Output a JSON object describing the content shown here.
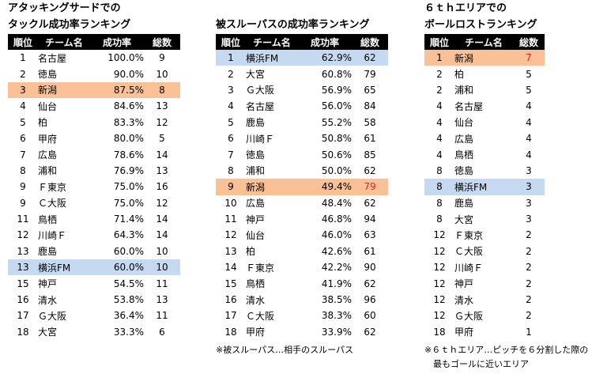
{
  "colors": {
    "orange_highlight": "#f9c195",
    "blue_highlight": "#c5d9f1",
    "header_bg": "#000000",
    "red_text": "#e8251b"
  },
  "panels": [
    {
      "title_lines": [
        "アタッキングサードでの",
        "タックル成功率ランキング"
      ],
      "headers": [
        "順位",
        "チーム名",
        "成功率",
        "総数"
      ],
      "rows": [
        {
          "rank": "1",
          "team": "名古屋",
          "rate": "100.0%",
          "count": "9"
        },
        {
          "rank": "2",
          "team": "徳島",
          "rate": "90.0%",
          "count": "10"
        },
        {
          "rank": "3",
          "team": "新潟",
          "rate": "87.5%",
          "count": "8",
          "highlight": "orange"
        },
        {
          "rank": "4",
          "team": "仙台",
          "rate": "84.6%",
          "count": "13"
        },
        {
          "rank": "5",
          "team": "柏",
          "rate": "83.3%",
          "count": "12"
        },
        {
          "rank": "6",
          "team": "甲府",
          "rate": "80.0%",
          "count": "5"
        },
        {
          "rank": "7",
          "team": "広島",
          "rate": "78.6%",
          "count": "14"
        },
        {
          "rank": "8",
          "team": "浦和",
          "rate": "76.9%",
          "count": "13"
        },
        {
          "rank": "9",
          "team": "Ｆ東京",
          "rate": "75.0%",
          "count": "16"
        },
        {
          "rank": "9",
          "team": "Ｃ大阪",
          "rate": "75.0%",
          "count": "12"
        },
        {
          "rank": "11",
          "team": "鳥栖",
          "rate": "71.4%",
          "count": "14"
        },
        {
          "rank": "12",
          "team": "川崎Ｆ",
          "rate": "64.3%",
          "count": "14"
        },
        {
          "rank": "13",
          "team": "鹿島",
          "rate": "60.0%",
          "count": "10"
        },
        {
          "rank": "13",
          "team": "横浜FM",
          "rate": "60.0%",
          "count": "10",
          "highlight": "blue"
        },
        {
          "rank": "15",
          "team": "神戸",
          "rate": "54.5%",
          "count": "11"
        },
        {
          "rank": "16",
          "team": "清水",
          "rate": "53.8%",
          "count": "13"
        },
        {
          "rank": "17",
          "team": "Ｇ大阪",
          "rate": "36.4%",
          "count": "11"
        },
        {
          "rank": "18",
          "team": "大宮",
          "rate": "33.3%",
          "count": "6"
        }
      ],
      "note_lines": []
    },
    {
      "title_lines": [
        "",
        "被スルーパスの成功率ランキング"
      ],
      "headers": [
        "順位",
        "チーム名",
        "成功率",
        "総数"
      ],
      "rows": [
        {
          "rank": "1",
          "team": "横浜FM",
          "rate": "62.9%",
          "count": "62",
          "highlight": "blue"
        },
        {
          "rank": "2",
          "team": "大宮",
          "rate": "60.8%",
          "count": "79"
        },
        {
          "rank": "3",
          "team": "Ｇ大阪",
          "rate": "56.9%",
          "count": "65"
        },
        {
          "rank": "4",
          "team": "名古屋",
          "rate": "56.0%",
          "count": "84"
        },
        {
          "rank": "5",
          "team": "鹿島",
          "rate": "55.2%",
          "count": "58"
        },
        {
          "rank": "6",
          "team": "川崎Ｆ",
          "rate": "50.8%",
          "count": "61"
        },
        {
          "rank": "7",
          "team": "徳島",
          "rate": "50.6%",
          "count": "85"
        },
        {
          "rank": "8",
          "team": "浦和",
          "rate": "50.0%",
          "count": "62"
        },
        {
          "rank": "9",
          "team": "新潟",
          "rate": "49.4%",
          "count": "79",
          "highlight": "orange",
          "count_red": true
        },
        {
          "rank": "10",
          "team": "広島",
          "rate": "48.4%",
          "count": "62"
        },
        {
          "rank": "11",
          "team": "神戸",
          "rate": "46.8%",
          "count": "94"
        },
        {
          "rank": "12",
          "team": "仙台",
          "rate": "46.0%",
          "count": "63"
        },
        {
          "rank": "13",
          "team": "柏",
          "rate": "42.6%",
          "count": "61"
        },
        {
          "rank": "14",
          "team": "Ｆ東京",
          "rate": "42.2%",
          "count": "90"
        },
        {
          "rank": "15",
          "team": "鳥栖",
          "rate": "41.9%",
          "count": "62"
        },
        {
          "rank": "16",
          "team": "清水",
          "rate": "38.5%",
          "count": "96"
        },
        {
          "rank": "17",
          "team": "Ｃ大阪",
          "rate": "38.3%",
          "count": "60"
        },
        {
          "rank": "18",
          "team": "甲府",
          "rate": "33.9%",
          "count": "62"
        }
      ],
      "note_lines": [
        "※被スルーパス…相手のスルーパス"
      ]
    },
    {
      "title_lines": [
        "６ｔｈエリアでの",
        "ボールロストランキング"
      ],
      "headers": [
        "順位",
        "チーム名",
        "総数"
      ],
      "rows": [
        {
          "rank": "1",
          "team": "新潟",
          "count": "7",
          "highlight": "orange",
          "count_red": true
        },
        {
          "rank": "2",
          "team": "柏",
          "count": "5"
        },
        {
          "rank": "2",
          "team": "浦和",
          "count": "5"
        },
        {
          "rank": "4",
          "team": "名古屋",
          "count": "4"
        },
        {
          "rank": "4",
          "team": "仙台",
          "count": "4"
        },
        {
          "rank": "4",
          "team": "広島",
          "count": "4"
        },
        {
          "rank": "4",
          "team": "鳥栖",
          "count": "4"
        },
        {
          "rank": "8",
          "team": "徳島",
          "count": "3"
        },
        {
          "rank": "8",
          "team": "横浜FM",
          "count": "3",
          "highlight": "blue"
        },
        {
          "rank": "8",
          "team": "鹿島",
          "count": "3"
        },
        {
          "rank": "8",
          "team": "大宮",
          "count": "3"
        },
        {
          "rank": "12",
          "team": "Ｆ東京",
          "count": "2"
        },
        {
          "rank": "12",
          "team": "Ｃ大阪",
          "count": "2"
        },
        {
          "rank": "12",
          "team": "川崎Ｆ",
          "count": "2"
        },
        {
          "rank": "12",
          "team": "神戸",
          "count": "2"
        },
        {
          "rank": "12",
          "team": "清水",
          "count": "2"
        },
        {
          "rank": "12",
          "team": "Ｇ大阪",
          "count": "2"
        },
        {
          "rank": "18",
          "team": "甲府",
          "count": "1"
        }
      ],
      "note_lines": [
        "※６ｔｈエリア…ピッチを６分割した際の",
        "最もゴールに近いエリア"
      ]
    }
  ]
}
